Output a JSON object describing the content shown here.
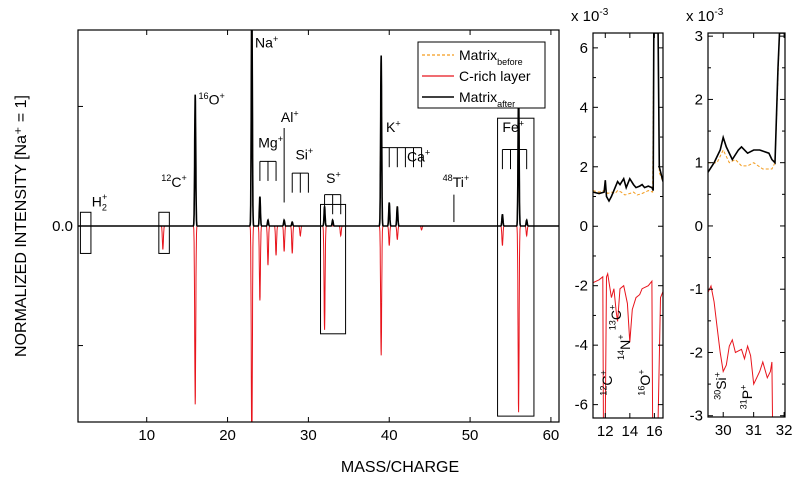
{
  "chart_data": [
    {
      "type": "line",
      "panel": "main",
      "xlabel": "MASS/CHARGE",
      "ylabel": "NORMALIZED INTENSITY [Na⁺ = 1]",
      "xlim": [
        1.5,
        61
      ],
      "ylim": [
        -1,
        1
      ],
      "xticks": [
        10,
        20,
        30,
        40,
        50,
        60
      ],
      "yticks": [
        {
          "value": 0,
          "label": "0.0"
        }
      ],
      "legend": {
        "position": "top-right",
        "entries": [
          {
            "name": "Matrix",
            "sub": "before",
            "color": "#f39c1f",
            "style": "dashed"
          },
          {
            "name": "C-rich layer",
            "sub": "",
            "color": "#e8141c",
            "style": "solid"
          },
          {
            "name": "Matrix",
            "sub": "after",
            "color": "#000000",
            "style": "solid"
          }
        ]
      },
      "series": [
        {
          "name": "Matrix_before",
          "color": "#f39c1f",
          "peaks": [
            [
              16,
              0.66
            ],
            [
              23,
              1.2
            ],
            [
              24,
              0.14
            ],
            [
              25,
              0.02
            ],
            [
              27,
              0.02
            ],
            [
              32,
              0.09
            ],
            [
              33,
              0.02
            ],
            [
              39,
              0.87
            ],
            [
              40,
              0.1
            ],
            [
              41,
              0.1
            ],
            [
              54,
              0.05
            ],
            [
              56,
              0.7
            ],
            [
              57,
              0.02
            ]
          ]
        },
        {
          "name": "C-rich layer",
          "color": "#e8141c",
          "peaks": [
            [
              12,
              -0.12
            ],
            [
              16,
              -0.91
            ],
            [
              23,
              -1.2
            ],
            [
              24,
              -0.38
            ],
            [
              25,
              -0.2
            ],
            [
              26,
              -0.15
            ],
            [
              27,
              -0.13
            ],
            [
              28,
              -0.14
            ],
            [
              29,
              -0.05
            ],
            [
              32,
              -0.53
            ],
            [
              34,
              -0.05
            ],
            [
              39,
              -0.66
            ],
            [
              40,
              -0.1
            ],
            [
              41,
              -0.07
            ],
            [
              44,
              -0.02
            ],
            [
              54,
              -0.1
            ],
            [
              56,
              -0.95
            ],
            [
              57,
              -0.05
            ]
          ]
        },
        {
          "name": "Matrix_after",
          "color": "#000000",
          "peaks": [
            [
              16,
              0.67
            ],
            [
              23,
              1.2
            ],
            [
              24,
              0.15
            ],
            [
              25,
              0.03
            ],
            [
              27,
              0.03
            ],
            [
              28,
              0.02
            ],
            [
              32,
              0.1
            ],
            [
              33,
              0.03
            ],
            [
              39,
              0.87
            ],
            [
              40,
              0.12
            ],
            [
              41,
              0.1
            ],
            [
              54,
              0.06
            ],
            [
              56,
              0.72
            ],
            [
              57,
              0.03
            ]
          ]
        }
      ],
      "annotations": [
        {
          "text": "H",
          "sup": "",
          "sub": "2",
          "post": "+",
          "x": 3.2,
          "y": 0.1
        },
        {
          "text": "C",
          "sup": "12",
          "sub": "",
          "post": "+",
          "x": 11.8,
          "y": 0.2
        },
        {
          "text": "O",
          "sup": "16",
          "sub": "",
          "post": "+",
          "x": 16.4,
          "y": 0.62
        },
        {
          "text": "Na",
          "sup": "",
          "sub": "",
          "post": "+",
          "x": 23.4,
          "y": 0.91
        },
        {
          "text": "Mg",
          "sup": "",
          "sub": "",
          "post": "+",
          "x": 23.8,
          "y": 0.4
        },
        {
          "text": "Al",
          "sup": "",
          "sub": "",
          "post": "+",
          "x": 26.6,
          "y": 0.53
        },
        {
          "text": "Si",
          "sup": "",
          "sub": "",
          "post": "+",
          "x": 28.4,
          "y": 0.34
        },
        {
          "text": "S",
          "sup": "",
          "sub": "",
          "post": "+",
          "x": 32.2,
          "y": 0.22
        },
        {
          "text": "K",
          "sup": "",
          "sub": "",
          "post": "+",
          "x": 39.6,
          "y": 0.48
        },
        {
          "text": "Ca",
          "sup": "",
          "sub": "",
          "post": "+",
          "x": 42.2,
          "y": 0.33
        },
        {
          "text": "Ti",
          "sup": "48",
          "sub": "",
          "post": "+",
          "x": 46.6,
          "y": 0.2
        },
        {
          "text": "Fe",
          "sup": "",
          "sub": "",
          "post": "+",
          "x": 54.0,
          "y": 0.48
        }
      ],
      "highlight_boxes": [
        {
          "label": "H2",
          "x": [
            1.8,
            3.1
          ],
          "y": [
            0.07,
            -0.14
          ]
        },
        {
          "label": "12C",
          "x": [
            11.5,
            12.8
          ],
          "y": [
            0.07,
            -0.14
          ]
        },
        {
          "label": "S",
          "x": [
            31.5,
            34.6
          ],
          "y": [
            0.11,
            -0.55
          ]
        },
        {
          "label": "Fe",
          "x": [
            53.4,
            57.9
          ],
          "y": [
            0.55,
            -0.97
          ]
        }
      ]
    },
    {
      "type": "line",
      "panel": "inset-left",
      "multiplier_label": "x 10",
      "multiplier_exp": "-3",
      "xlim": [
        11,
        16.7
      ],
      "ylim": [
        -6.45,
        6.5
      ],
      "xticks": [
        12,
        14,
        16
      ],
      "yticks": [
        6,
        4,
        2,
        0,
        -2,
        -4,
        -6
      ],
      "series": [
        {
          "name": "Matrix_before",
          "color": "#f39c1f",
          "points": [
            [
              11.0,
              1.2
            ],
            [
              11.5,
              1.15
            ],
            [
              11.9,
              1.2
            ],
            [
              12.0,
              1.3
            ],
            [
              12.2,
              1.1
            ],
            [
              12.5,
              1.15
            ],
            [
              12.8,
              1.1
            ],
            [
              13.0,
              1.2
            ],
            [
              13.3,
              1.15
            ],
            [
              13.6,
              1.05
            ],
            [
              14.0,
              1.1
            ],
            [
              14.3,
              1.15
            ],
            [
              14.6,
              1.05
            ],
            [
              15.0,
              1.1
            ],
            [
              15.5,
              1.2
            ],
            [
              15.85,
              1.15
            ],
            [
              15.95,
              6.5
            ],
            [
              16.3,
              6.5
            ],
            [
              16.4,
              1.8
            ],
            [
              16.7,
              1.5
            ]
          ]
        },
        {
          "name": "Matrix_after",
          "color": "#000000",
          "points": [
            [
              11.0,
              1.15
            ],
            [
              11.5,
              1.1
            ],
            [
              11.9,
              1.15
            ],
            [
              12.0,
              1.55
            ],
            [
              12.1,
              1.0
            ],
            [
              12.3,
              0.85
            ],
            [
              12.5,
              1.0
            ],
            [
              12.8,
              1.3
            ],
            [
              13.0,
              1.5
            ],
            [
              13.2,
              1.4
            ],
            [
              13.5,
              1.6
            ],
            [
              13.7,
              1.3
            ],
            [
              14.0,
              1.6
            ],
            [
              14.3,
              1.4
            ],
            [
              14.5,
              1.3
            ],
            [
              14.8,
              1.35
            ],
            [
              15.0,
              1.4
            ],
            [
              15.2,
              1.3
            ],
            [
              15.5,
              1.35
            ],
            [
              15.8,
              1.3
            ],
            [
              15.9,
              1.2
            ],
            [
              15.95,
              6.5
            ],
            [
              16.3,
              6.5
            ],
            [
              16.4,
              2.0
            ],
            [
              16.7,
              1.5
            ]
          ]
        },
        {
          "name": "C-rich layer",
          "color": "#e8141c",
          "points": [
            [
              11.0,
              -1.9
            ],
            [
              11.5,
              -1.8
            ],
            [
              11.8,
              -1.7
            ],
            [
              11.85,
              -6.5
            ],
            [
              12.0,
              -6.5
            ],
            [
              12.1,
              -1.7
            ],
            [
              12.2,
              -1.6
            ],
            [
              12.5,
              -2.4
            ],
            [
              12.7,
              -2.1
            ],
            [
              12.9,
              -2.9
            ],
            [
              13.0,
              -3.2
            ],
            [
              13.2,
              -2.1
            ],
            [
              13.5,
              -2.0
            ],
            [
              13.8,
              -2.6
            ],
            [
              14.0,
              -3.9
            ],
            [
              14.2,
              -2.8
            ],
            [
              14.5,
              -2.4
            ],
            [
              14.8,
              -2.3
            ],
            [
              15.0,
              -2.1
            ],
            [
              15.5,
              -2.0
            ],
            [
              15.8,
              -1.85
            ],
            [
              15.85,
              -6.5
            ],
            [
              16.3,
              -6.5
            ],
            [
              16.5,
              -2.4
            ],
            [
              16.7,
              -2.2
            ]
          ]
        }
      ],
      "annotations": [
        {
          "text": "C",
          "sup": "12",
          "post": "+",
          "x": 12.55,
          "y": -5.7
        },
        {
          "text": "C",
          "sup": "13",
          "post": "+",
          "x": 13.3,
          "y": -3.5
        },
        {
          "text": "N",
          "sup": "14",
          "post": "+",
          "x": 14.0,
          "y": -4.5
        },
        {
          "text": "O",
          "sup": "16",
          "post": "+",
          "x": 15.65,
          "y": -5.7
        }
      ]
    },
    {
      "type": "line",
      "panel": "inset-right",
      "multiplier_label": "x 10",
      "multiplier_exp": "-3",
      "xlim": [
        29.5,
        32.03
      ],
      "ylim": [
        -3.02,
        3.05
      ],
      "xticks": [
        30,
        31,
        32
      ],
      "yticks": [
        3,
        2,
        1,
        0,
        -1,
        -2,
        -3
      ],
      "series": [
        {
          "name": "Matrix_before",
          "color": "#f39c1f",
          "points": [
            [
              29.5,
              1.0
            ],
            [
              29.8,
              1.0
            ],
            [
              30.0,
              1.2
            ],
            [
              30.2,
              1.0
            ],
            [
              30.4,
              1.05
            ],
            [
              30.6,
              0.95
            ],
            [
              30.8,
              0.95
            ],
            [
              31.0,
              1.0
            ],
            [
              31.3,
              0.9
            ],
            [
              31.6,
              0.9
            ],
            [
              31.7,
              1.0
            ],
            [
              31.85,
              3.05
            ]
          ]
        },
        {
          "name": "Matrix_after",
          "color": "#000000",
          "points": [
            [
              29.5,
              0.85
            ],
            [
              29.7,
              1.0
            ],
            [
              29.9,
              1.2
            ],
            [
              30.0,
              1.4
            ],
            [
              30.1,
              1.25
            ],
            [
              30.3,
              1.05
            ],
            [
              30.5,
              1.2
            ],
            [
              30.6,
              1.25
            ],
            [
              30.8,
              1.15
            ],
            [
              31.0,
              1.2
            ],
            [
              31.2,
              1.2
            ],
            [
              31.5,
              1.15
            ],
            [
              31.6,
              1.05
            ],
            [
              31.7,
              1.0
            ],
            [
              31.8,
              2.5
            ],
            [
              31.85,
              3.05
            ],
            [
              32.03,
              3.05
            ]
          ]
        },
        {
          "name": "C-rich layer",
          "color": "#e8141c",
          "points": [
            [
              29.5,
              -1.05
            ],
            [
              29.6,
              -0.95
            ],
            [
              29.7,
              -1.2
            ],
            [
              29.8,
              -1.6
            ],
            [
              29.9,
              -2.0
            ],
            [
              30.0,
              -2.3
            ],
            [
              30.1,
              -2.2
            ],
            [
              30.2,
              -1.9
            ],
            [
              30.3,
              -1.8
            ],
            [
              30.4,
              -2.0
            ],
            [
              30.6,
              -1.95
            ],
            [
              30.7,
              -2.1
            ],
            [
              30.8,
              -1.9
            ],
            [
              30.9,
              -2.05
            ],
            [
              31.0,
              -2.5
            ],
            [
              31.2,
              -2.3
            ],
            [
              31.3,
              -2.15
            ],
            [
              31.45,
              -2.4
            ],
            [
              31.55,
              -2.3
            ],
            [
              31.6,
              -2.15
            ],
            [
              31.62,
              -3.02
            ]
          ]
        }
      ],
      "annotations": [
        {
          "text": "Si",
          "sup": "30",
          "post": "+",
          "x": 30.1,
          "y": -2.75
        },
        {
          "text": "P",
          "sup": "31",
          "post": "+",
          "x": 30.95,
          "y": -2.9
        }
      ]
    }
  ]
}
